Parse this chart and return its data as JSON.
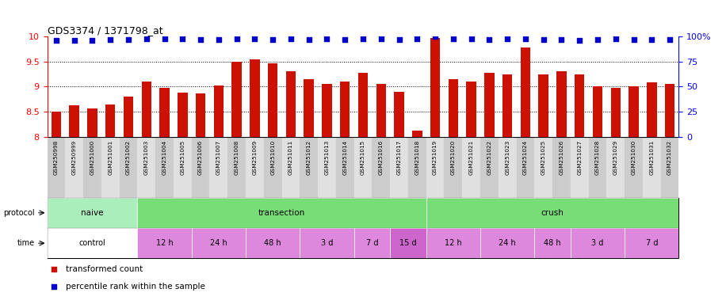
{
  "title": "GDS3374 / 1371798_at",
  "samples": [
    "GSM250998",
    "GSM250999",
    "GSM251000",
    "GSM251001",
    "GSM251002",
    "GSM251003",
    "GSM251004",
    "GSM251005",
    "GSM251006",
    "GSM251007",
    "GSM251008",
    "GSM251009",
    "GSM251010",
    "GSM251011",
    "GSM251012",
    "GSM251013",
    "GSM251014",
    "GSM251015",
    "GSM251016",
    "GSM251017",
    "GSM251018",
    "GSM251019",
    "GSM251020",
    "GSM251021",
    "GSM251022",
    "GSM251023",
    "GSM251024",
    "GSM251025",
    "GSM251026",
    "GSM251027",
    "GSM251028",
    "GSM251029",
    "GSM251030",
    "GSM251031",
    "GSM251032"
  ],
  "bar_values": [
    8.5,
    8.63,
    8.57,
    8.65,
    8.8,
    9.1,
    8.98,
    8.88,
    8.87,
    9.03,
    9.5,
    9.55,
    9.47,
    9.3,
    9.15,
    9.05,
    9.1,
    9.28,
    9.05,
    8.9,
    8.13,
    9.97,
    9.15,
    9.1,
    9.28,
    9.25,
    9.78,
    9.25,
    9.3,
    9.25,
    9.0,
    8.98,
    9.0,
    9.08,
    9.05
  ],
  "percentile_values": [
    96,
    96,
    96,
    97,
    97,
    98,
    98,
    98,
    97,
    97,
    98,
    98,
    97,
    98,
    97,
    98,
    97,
    98,
    98,
    97,
    98,
    100,
    98,
    98,
    97,
    98,
    98,
    97,
    97,
    96,
    97,
    98,
    97,
    97,
    97
  ],
  "ylim_left": [
    8.0,
    10.0
  ],
  "ylim_right": [
    0,
    100
  ],
  "bar_color": "#CC1100",
  "dot_color": "#0000CC",
  "proto_groups": [
    {
      "label": "naive",
      "start": 0,
      "end": 4,
      "color": "#AAEEBB"
    },
    {
      "label": "transection",
      "start": 5,
      "end": 20,
      "color": "#77DD77"
    },
    {
      "label": "crush",
      "start": 21,
      "end": 34,
      "color": "#77DD77"
    }
  ],
  "time_groups": [
    {
      "label": "control",
      "start": 0,
      "end": 4,
      "color": "#FFFFFF"
    },
    {
      "label": "12 h",
      "start": 5,
      "end": 7,
      "color": "#DD88DD"
    },
    {
      "label": "24 h",
      "start": 8,
      "end": 10,
      "color": "#DD88DD"
    },
    {
      "label": "48 h",
      "start": 11,
      "end": 13,
      "color": "#DD88DD"
    },
    {
      "label": "3 d",
      "start": 14,
      "end": 16,
      "color": "#DD88DD"
    },
    {
      "label": "7 d",
      "start": 17,
      "end": 18,
      "color": "#DD88DD"
    },
    {
      "label": "15 d",
      "start": 19,
      "end": 20,
      "color": "#CC66CC"
    },
    {
      "label": "12 h",
      "start": 21,
      "end": 23,
      "color": "#DD88DD"
    },
    {
      "label": "24 h",
      "start": 24,
      "end": 26,
      "color": "#DD88DD"
    },
    {
      "label": "48 h",
      "start": 27,
      "end": 28,
      "color": "#DD88DD"
    },
    {
      "label": "3 d",
      "start": 29,
      "end": 31,
      "color": "#DD88DD"
    },
    {
      "label": "7 d",
      "start": 32,
      "end": 34,
      "color": "#DD88DD"
    }
  ],
  "legend_items": [
    {
      "label": "transformed count",
      "color": "#CC1100"
    },
    {
      "label": "percentile rank within the sample",
      "color": "#0000CC"
    }
  ]
}
